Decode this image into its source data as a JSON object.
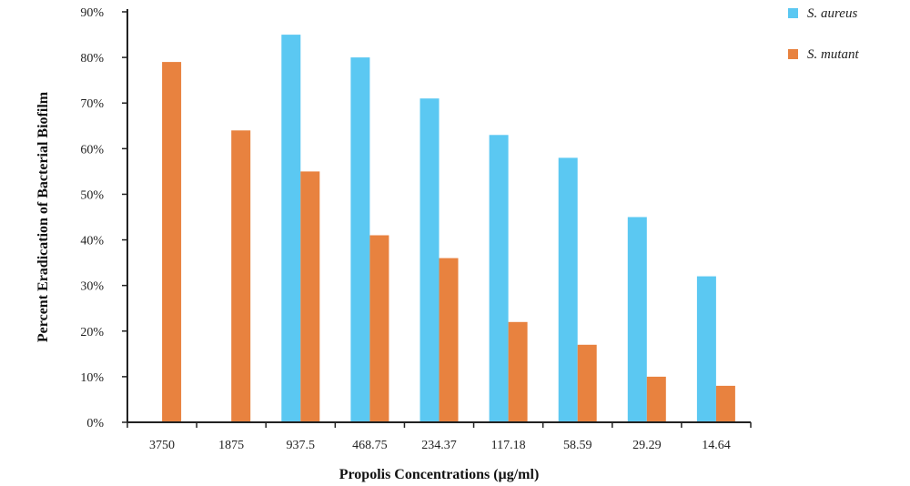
{
  "chart_data": {
    "type": "bar",
    "title": "",
    "xlabel": "Propolis Concentrations (µg/ml)",
    "ylabel": "Percent Eradication of Bacterial Biofilm",
    "categories": [
      "3750",
      "1875",
      "937.5",
      "468.75",
      "234.37",
      "117.18",
      "58.59",
      "29.29",
      "14.64"
    ],
    "ylim": [
      0,
      90
    ],
    "yticks": [
      0,
      10,
      20,
      30,
      40,
      50,
      60,
      70,
      80,
      90
    ],
    "ytick_labels": [
      "0%",
      "10%",
      "20%",
      "30%",
      "40%",
      "50%",
      "60%",
      "70%",
      "80%",
      "90%"
    ],
    "grid": false,
    "legend_position": "top-right",
    "series": [
      {
        "name": "S. aureus",
        "color": "#5bc8f2",
        "values": [
          0,
          0,
          85,
          80,
          71,
          63,
          58,
          45,
          32
        ]
      },
      {
        "name": "S. mutant",
        "color": "#e8823f",
        "values": [
          79,
          64,
          55,
          41,
          36,
          22,
          17,
          10,
          8
        ]
      }
    ]
  }
}
